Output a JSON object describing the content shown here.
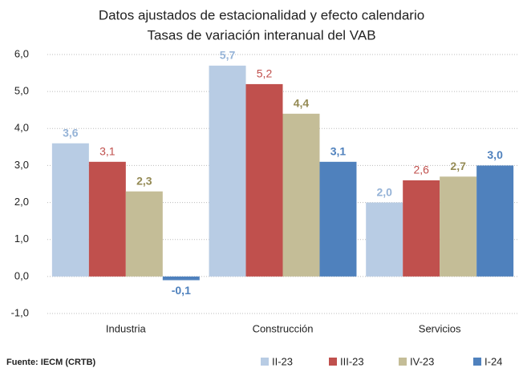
{
  "chart_data": {
    "type": "bar",
    "title": "Datos ajustados de estacionalidad y efecto calendario",
    "subtitle": "Tasas de variación interanual del VAB",
    "source": "Fuente: IECM (CRTB)",
    "categories": [
      "Industria",
      "Construcción",
      "Servicios"
    ],
    "series": [
      {
        "name": "II-23",
        "color": "#b8cce4",
        "label_color": "#95b3d7",
        "values": [
          3.6,
          5.7,
          2.0
        ],
        "value_labels": [
          "3,6",
          "5,7",
          "2,0"
        ]
      },
      {
        "name": "III-23",
        "color": "#c0504d",
        "label_color": "#c0504d",
        "values": [
          3.1,
          5.2,
          2.6
        ],
        "value_labels": [
          "3,1",
          "5,2",
          "2,6"
        ]
      },
      {
        "name": "IV-23",
        "color": "#c4bd97",
        "label_color": "#948a54",
        "values": [
          2.3,
          4.4,
          2.7
        ],
        "value_labels": [
          "2,3",
          "4,4",
          "2,7"
        ]
      },
      {
        "name": "I-24",
        "color": "#4f81bd",
        "label_color": "#4f81bd",
        "values": [
          -0.1,
          3.1,
          3.0
        ],
        "value_labels": [
          "-0,1",
          "3,1",
          "3,0"
        ]
      }
    ],
    "ylim": [
      -1,
      6
    ],
    "yticks": [
      {
        "value": -1,
        "label": "-1,0"
      },
      {
        "value": 0,
        "label": "0,0"
      },
      {
        "value": 1,
        "label": "1,0"
      },
      {
        "value": 2,
        "label": "2,0"
      },
      {
        "value": 3,
        "label": "3,0"
      },
      {
        "value": 4,
        "label": "4,0"
      },
      {
        "value": 5,
        "label": "5,0"
      },
      {
        "value": 6,
        "label": "6,0"
      }
    ],
    "grid": true,
    "legend": "bottom"
  }
}
